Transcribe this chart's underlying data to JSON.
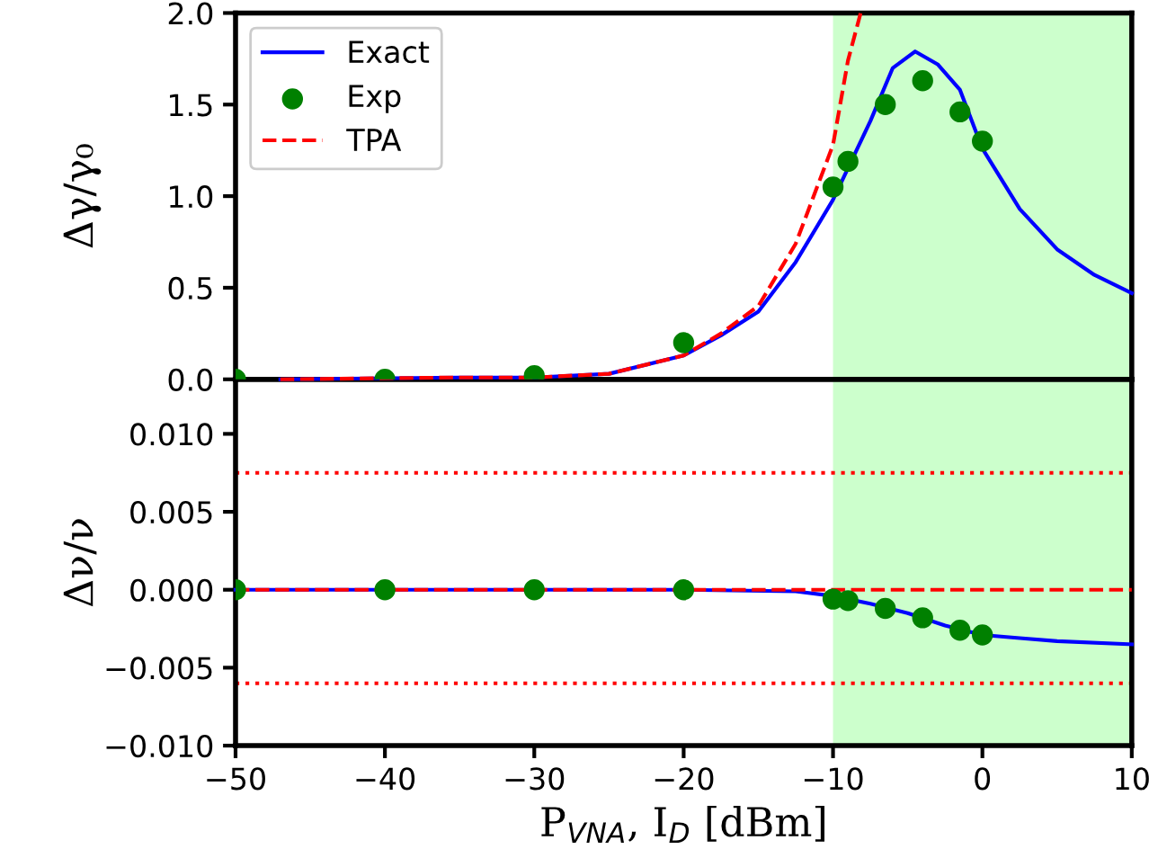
{
  "chart_data": [
    {
      "type": "line",
      "ylabel": "Δγ/γ₀",
      "xlim": [
        -50,
        10
      ],
      "ylim": [
        0,
        2.0
      ],
      "yticks": [
        {
          "value": 0,
          "label": "0.0"
        },
        0.5,
        {
          "value": 1,
          "label": "1.0"
        },
        1.5,
        {
          "value": 2,
          "label": "2.0"
        }
      ],
      "tick_labels": "y",
      "grid": false,
      "legend": "top left",
      "bands": [
        {
          "axis": "x",
          "from": -10,
          "to": 10,
          "color": "#ccffcc"
        }
      ],
      "series": [
        {
          "name": "Exact",
          "type": "line",
          "color": "#0000ff",
          "line_style": "solid",
          "marker": "none",
          "x": [
            -47,
            -35,
            -30,
            -25,
            -20,
            -17.5,
            -15,
            -12.5,
            -10,
            -7.5,
            -6,
            -4.5,
            -3,
            -1.5,
            0,
            2.5,
            5,
            7.5,
            10
          ],
          "values": [
            0,
            0.01,
            0.01,
            0.03,
            0.13,
            0.24,
            0.37,
            0.64,
            0.98,
            1.41,
            1.7,
            1.79,
            1.72,
            1.58,
            1.26,
            0.93,
            0.71,
            0.57,
            0.47
          ]
        },
        {
          "name": "Exp",
          "type": "scatter",
          "color": "#008000",
          "marker": "circle",
          "x": [
            -50,
            -40,
            -30,
            -20,
            -10,
            -9,
            -6.5,
            -4,
            -1.5,
            0
          ],
          "values": [
            0,
            0,
            0.02,
            0.2,
            1.05,
            1.19,
            1.5,
            1.63,
            1.46,
            1.3
          ]
        },
        {
          "name": "TPA",
          "type": "line",
          "color": "#ff0000",
          "line_style": "dashed",
          "marker": "none",
          "x": [
            -47,
            -35,
            -30,
            -25,
            -20,
            -17.5,
            -15,
            -12.5,
            -10,
            -9,
            -8.15
          ],
          "values": [
            0,
            0.01,
            0.01,
            0.03,
            0.13,
            0.25,
            0.4,
            0.74,
            1.28,
            1.74,
            2.0
          ]
        }
      ]
    },
    {
      "type": "line",
      "xlabel": "P$_{VNA}$, I$_{D}$ [dBm]",
      "ylabel": "Δν/ν",
      "xlim": [
        -50,
        10
      ],
      "xticks": [
        {
          "value": -50,
          "label": "−50"
        },
        {
          "value": -40,
          "label": "−40"
        },
        {
          "value": -30,
          "label": "−30"
        },
        {
          "value": -20,
          "label": "−20"
        },
        {
          "value": -10,
          "label": "−10"
        },
        0,
        10
      ],
      "ylim": [
        -0.01,
        0.0135
      ],
      "yticks": [
        {
          "value": -0.01,
          "label": "−0.010"
        },
        {
          "value": -0.005,
          "label": "−0.005"
        },
        {
          "value": 0,
          "label": "0.000"
        },
        {
          "value": 0.005,
          "label": "0.005"
        },
        {
          "value": 0.01,
          "label": "0.010"
        }
      ],
      "grid": false,
      "legend": false,
      "bands": [
        {
          "axis": "x",
          "from": -10,
          "to": 10,
          "color": "#ccffcc"
        }
      ],
      "ref_lines": [
        {
          "axis": "y",
          "value": 0.0075,
          "color": "#ff0000",
          "line_style": "dotted"
        },
        {
          "axis": "y",
          "value": -0.006,
          "color": "#ff0000",
          "line_style": "dotted"
        }
      ],
      "series": [
        {
          "type": "line",
          "color": "#0000ff",
          "line_style": "solid",
          "marker": "none",
          "x": [
            -50,
            -20,
            -12.5,
            -10,
            -7.5,
            -5,
            -2.5,
            0,
            2.5,
            5,
            10
          ],
          "values": [
            0,
            0,
            -0.0001,
            -0.0004,
            -0.0009,
            -0.0015,
            -0.0023,
            -0.0029,
            -0.0031,
            -0.0033,
            -0.0035
          ]
        },
        {
          "type": "scatter",
          "color": "#008000",
          "marker": "circle",
          "x": [
            -50,
            -40,
            -30,
            -20,
            -10,
            -9,
            -6.5,
            -4,
            -1.5,
            0
          ],
          "values": [
            0,
            0,
            0,
            0,
            -0.0006,
            -0.0007,
            -0.0012,
            -0.0018,
            -0.0026,
            -0.0029
          ]
        },
        {
          "type": "line",
          "color": "#ff0000",
          "line_style": "dashed",
          "marker": "none",
          "x": [
            -50,
            10
          ],
          "values": [
            0,
            0
          ]
        }
      ]
    }
  ]
}
